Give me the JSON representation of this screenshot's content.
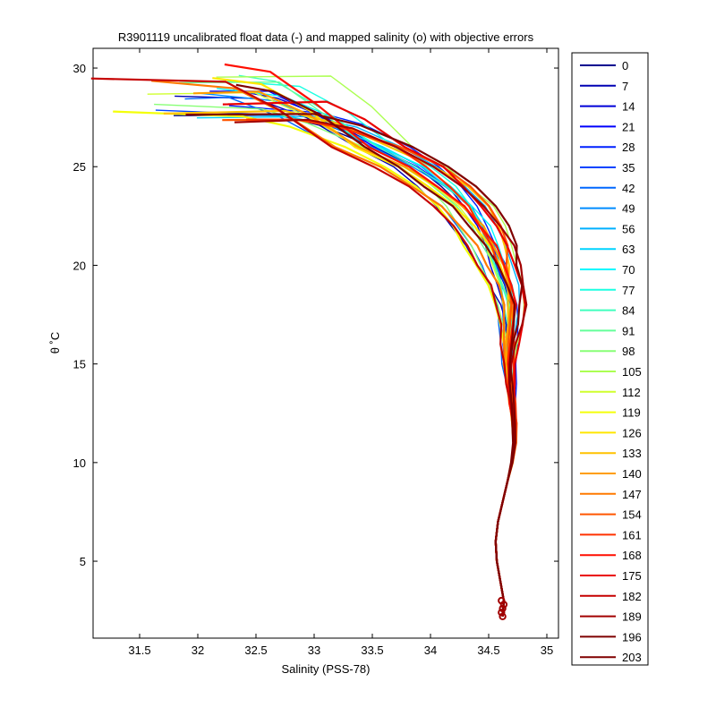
{
  "chart_data": {
    "type": "line",
    "title": "R3901119 uncalibrated float data (-) and mapped salinity (o) with objective errors",
    "xlabel": "Salinity (PSS-78)",
    "ylabel": "θ ˚C",
    "xlim": [
      31.1,
      35.1
    ],
    "ylim": [
      1.1,
      31.0
    ],
    "xticks": [
      31.5,
      32,
      32.5,
      33,
      33.5,
      34,
      34.5,
      35
    ],
    "xtick_labels": [
      "31.5",
      "32",
      "32.5",
      "33",
      "33.5",
      "34",
      "34.5",
      "35"
    ],
    "yticks": [
      5,
      10,
      15,
      20,
      25,
      30
    ],
    "ytick_labels": [
      "5",
      "10",
      "15",
      "20",
      "25",
      "30"
    ],
    "grid": false,
    "legend_position": "outside-right",
    "colormap": "jet",
    "legend": [
      "0",
      "7",
      "14",
      "21",
      "28",
      "35",
      "42",
      "49",
      "56",
      "63",
      "70",
      "77",
      "84",
      "91",
      "98",
      "105",
      "112",
      "119",
      "126",
      "133",
      "140",
      "147",
      "154",
      "161",
      "168",
      "175",
      "182",
      "189",
      "196",
      "203"
    ],
    "legend_colors": [
      "#00008f",
      "#0000b3",
      "#0000d8",
      "#0000fc",
      "#0020ff",
      "#0044ff",
      "#0068ff",
      "#008cff",
      "#00b0ff",
      "#00d4ff",
      "#00f8ff",
      "#1cffe2",
      "#40ffbe",
      "#64ff9a",
      "#88ff76",
      "#acff52",
      "#d0ff2e",
      "#f4ff0a",
      "#ffe600",
      "#ffc200",
      "#ff9e00",
      "#ff7a00",
      "#ff5600",
      "#ff3200",
      "#ff0e00",
      "#ea0000",
      "#c60000",
      "#a20000",
      "#7e0000",
      "#800000"
    ],
    "profile_shape": [
      [
        34.62,
        2.2
      ],
      [
        34.63,
        3.0
      ],
      [
        34.6,
        4.0
      ],
      [
        34.57,
        5.0
      ],
      [
        34.56,
        6.0
      ],
      [
        34.58,
        7.0
      ],
      [
        34.62,
        8.0
      ],
      [
        34.66,
        9.0
      ],
      [
        34.7,
        10.0
      ],
      [
        34.72,
        11.0
      ],
      [
        34.72,
        12.0
      ],
      [
        34.7,
        13.0
      ],
      [
        34.68,
        14.0
      ],
      [
        34.66,
        15.0
      ],
      [
        34.66,
        16.0
      ],
      [
        34.67,
        17.0
      ],
      [
        34.66,
        18.0
      ],
      [
        34.62,
        19.0
      ],
      [
        34.55,
        20.0
      ],
      [
        34.48,
        21.0
      ],
      [
        34.38,
        22.0
      ],
      [
        34.25,
        23.0
      ],
      [
        34.05,
        24.0
      ],
      [
        33.8,
        25.0
      ],
      [
        33.45,
        26.0
      ],
      [
        33.0,
        27.0
      ],
      [
        32.6,
        27.5
      ]
    ],
    "mapped_points": [
      [
        34.62,
        2.2
      ],
      [
        34.62,
        2.6
      ],
      [
        34.61,
        3.0
      ],
      [
        34.61,
        2.4
      ],
      [
        34.63,
        2.8
      ]
    ]
  }
}
